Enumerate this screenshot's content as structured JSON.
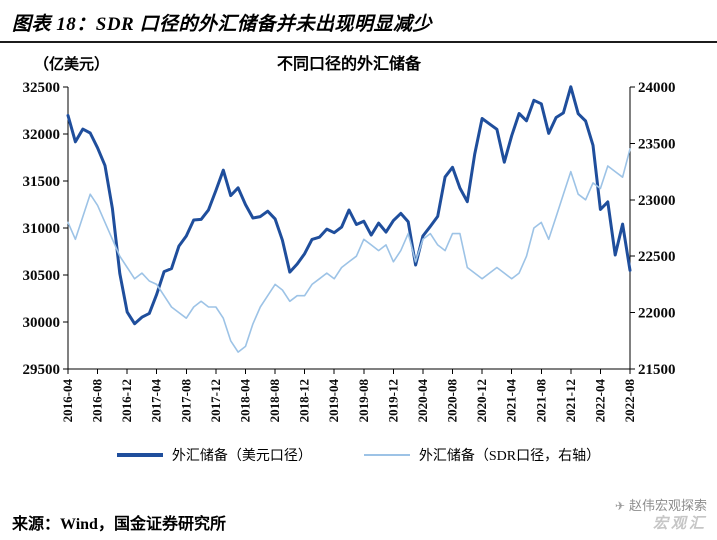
{
  "header": {
    "title": "图表 18：SDR 口径的外汇储备并未出现明显减少"
  },
  "chart": {
    "unit_label": "（亿美元）",
    "title": "不同口径的外汇储备"
  },
  "legend": [
    {
      "label": "外汇储备（美元口径）"
    },
    {
      "label": "外汇储备（SDR口径，右轴）"
    }
  ],
  "footer": {
    "source": "来源：Wind，国金证券研究所"
  },
  "watermark": {
    "text": "赵伟宏观探索",
    "logo": "宏观汇"
  },
  "chart_data": {
    "type": "line",
    "title": "不同口径的外汇储备",
    "x_monthly_start": "2016-04",
    "x_monthly_end": "2022-08",
    "x_tick_labels": [
      "2016-04",
      "2016-08",
      "2016-12",
      "2017-04",
      "2017-08",
      "2017-12",
      "2018-04",
      "2018-08",
      "2018-12",
      "2019-04",
      "2019-08",
      "2019-12",
      "2020-04",
      "2020-08",
      "2020-12",
      "2021-04",
      "2021-08",
      "2021-12",
      "2022-04",
      "2022-08"
    ],
    "x_tick_every_n_points": 4,
    "left_axis": {
      "label": "（亿美元）",
      "range": [
        29500,
        32500
      ],
      "ticks": [
        29500,
        30000,
        30500,
        31000,
        31500,
        32000,
        32500
      ]
    },
    "right_axis": {
      "range": [
        21500,
        24000
      ],
      "ticks": [
        21500,
        22000,
        22500,
        23000,
        23500,
        24000
      ]
    },
    "grid": false,
    "legend_position": "bottom",
    "series": [
      {
        "name": "外汇储备（美元口径）",
        "axis": "left",
        "color": "#1F4E9C",
        "width": 3,
        "values": [
          32197,
          31917,
          32052,
          32011,
          31852,
          31664,
          31207,
          30516,
          30105,
          29982,
          30051,
          30091,
          30295,
          30536,
          30568,
          30807,
          30915,
          31085,
          31092,
          31193,
          31399,
          31615,
          31345,
          31428,
          31249,
          31106,
          31121,
          31179,
          31097,
          30870,
          30531,
          30617,
          30727,
          30879,
          30902,
          30988,
          30950,
          31010,
          31192,
          31037,
          31072,
          30924,
          31052,
          30956,
          31079,
          31155,
          31067,
          30606,
          30915,
          31017,
          31123,
          31544,
          31646,
          31426,
          31280,
          31785,
          32165,
          32107,
          32050,
          31700,
          31982,
          32218,
          32140,
          32359,
          32321,
          32006,
          32176,
          32224,
          32502,
          32216,
          32138,
          31880,
          31197,
          31278,
          30713,
          31041,
          30549
        ]
      },
      {
        "name": "外汇储备（SDR口径，右轴）",
        "axis": "right",
        "color": "#9DC3E6",
        "width": 1.6,
        "values": [
          22800,
          22650,
          22850,
          23050,
          22950,
          22800,
          22650,
          22500,
          22400,
          22300,
          22350,
          22280,
          22250,
          22150,
          22050,
          22000,
          21950,
          22050,
          22100,
          22050,
          22050,
          21950,
          21750,
          21650,
          21700,
          21900,
          22050,
          22150,
          22250,
          22200,
          22100,
          22150,
          22150,
          22250,
          22300,
          22350,
          22300,
          22400,
          22450,
          22500,
          22650,
          22600,
          22550,
          22600,
          22450,
          22550,
          22700,
          22450,
          22650,
          22700,
          22600,
          22550,
          22700,
          22700,
          22400,
          22350,
          22300,
          22350,
          22400,
          22350,
          22300,
          22350,
          22500,
          22750,
          22800,
          22650,
          22850,
          23050,
          23250,
          23050,
          23000,
          23150,
          23100,
          23300,
          23250,
          23200,
          23450
        ]
      }
    ]
  }
}
